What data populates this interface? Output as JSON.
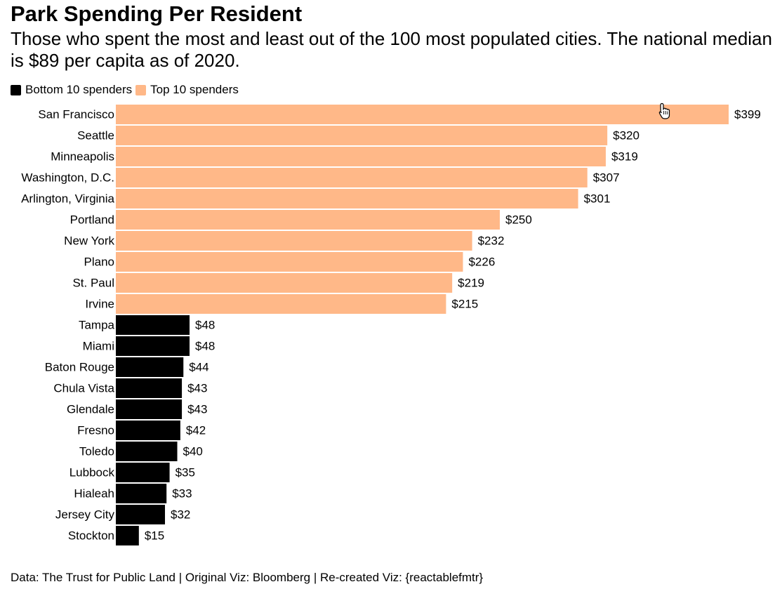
{
  "title": "Park Spending Per Resident",
  "subtitle": "Those who spent the most and least out of the 100 most populated cities. The national median is $89 per capita as of 2020.",
  "legend": [
    {
      "label": "Bottom 10 spenders",
      "color": "#000000"
    },
    {
      "label": "Top 10 spenders",
      "color": "#ffb888"
    }
  ],
  "colors": {
    "top": "#ffb888",
    "bottom": "#000000"
  },
  "caption": "Data: The Trust for Public Land | Original Viz: Bloomberg | Re-created Viz: {reactablefmtr}",
  "chart_data": {
    "type": "bar",
    "orientation": "horizontal",
    "title": "Park Spending Per Resident",
    "xlabel": "",
    "ylabel": "",
    "xlim": [
      0,
      399
    ],
    "grid": false,
    "value_prefix": "$",
    "categories": [
      "San Francisco",
      "Seattle",
      "Minneapolis",
      "Washington, D.C.",
      "Arlington, Virginia",
      "Portland",
      "New York",
      "Plano",
      "St. Paul",
      "Irvine",
      "Tampa",
      "Miami",
      "Baton Rouge",
      "Chula Vista",
      "Glendale",
      "Fresno",
      "Toledo",
      "Lubbock",
      "Hialeah",
      "Jersey City",
      "Stockton"
    ],
    "values": [
      399,
      320,
      319,
      307,
      301,
      250,
      232,
      226,
      219,
      215,
      48,
      48,
      44,
      43,
      43,
      42,
      40,
      35,
      33,
      32,
      15
    ],
    "groups": [
      "Top 10 spenders",
      "Top 10 spenders",
      "Top 10 spenders",
      "Top 10 spenders",
      "Top 10 spenders",
      "Top 10 spenders",
      "Top 10 spenders",
      "Top 10 spenders",
      "Top 10 spenders",
      "Top 10 spenders",
      "Bottom 10 spenders",
      "Bottom 10 spenders",
      "Bottom 10 spenders",
      "Bottom 10 spenders",
      "Bottom 10 spenders",
      "Bottom 10 spenders",
      "Bottom 10 spenders",
      "Bottom 10 spenders",
      "Bottom 10 spenders",
      "Bottom 10 spenders",
      "Bottom 10 spenders"
    ]
  }
}
